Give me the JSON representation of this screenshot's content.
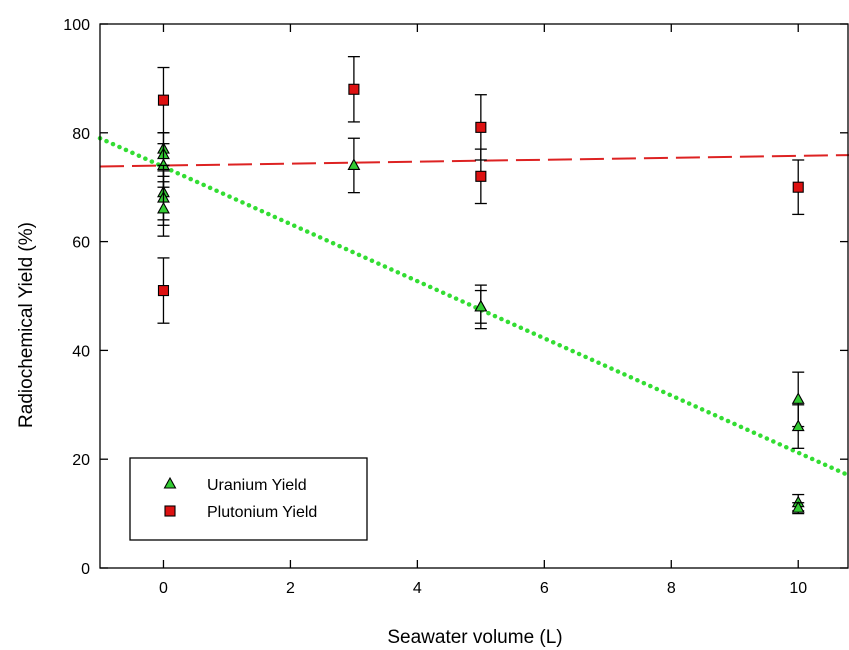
{
  "chart_data": {
    "type": "scatter",
    "xlabel": "Seawater volume (L)",
    "ylabel": "Radiochemical Yield (%)",
    "xlim": [
      -1,
      10.8
    ],
    "ylim": [
      0,
      100
    ],
    "x_ticks": [
      0,
      2,
      4,
      6,
      8,
      10
    ],
    "y_ticks": [
      0,
      20,
      40,
      60,
      80,
      100
    ],
    "grid": false,
    "legend_position": "bottom-left",
    "series": [
      {
        "name": "Uranium Yield",
        "marker": "triangle",
        "color": "#33cc33",
        "points": [
          {
            "x": 0,
            "y": 77,
            "err": 3
          },
          {
            "x": 0,
            "y": 76,
            "err": 4
          },
          {
            "x": 0,
            "y": 74,
            "err": 4
          },
          {
            "x": 0,
            "y": 69,
            "err": 5
          },
          {
            "x": 0,
            "y": 68,
            "err": 5
          },
          {
            "x": 0,
            "y": 66,
            "err": 5
          },
          {
            "x": 3,
            "y": 74,
            "err": 5
          },
          {
            "x": 5,
            "y": 48,
            "err": 4
          },
          {
            "x": 5,
            "y": 48,
            "err": 3
          },
          {
            "x": 10,
            "y": 31,
            "err": 5
          },
          {
            "x": 10,
            "y": 26,
            "err": 4
          },
          {
            "x": 10,
            "y": 12,
            "err": 1.5
          },
          {
            "x": 10,
            "y": 11,
            "err": 1
          }
        ],
        "fit": {
          "style": "dotted",
          "color": "#33dd33",
          "x": [
            -1,
            10.8
          ],
          "y": [
            79,
            17
          ]
        }
      },
      {
        "name": "Plutonium Yield",
        "marker": "square",
        "color": "#dd1111",
        "points": [
          {
            "x": 0,
            "y": 86,
            "err": 6
          },
          {
            "x": 0,
            "y": 51,
            "err": 6
          },
          {
            "x": 3,
            "y": 88,
            "err": 6
          },
          {
            "x": 5,
            "y": 81,
            "err": 6
          },
          {
            "x": 5,
            "y": 72,
            "err": 5
          },
          {
            "x": 10,
            "y": 70,
            "err": 5
          }
        ],
        "fit": {
          "style": "dashed",
          "color": "#dd2222",
          "x": [
            -1,
            10.8
          ],
          "y": [
            73.8,
            75.9
          ]
        }
      }
    ]
  }
}
